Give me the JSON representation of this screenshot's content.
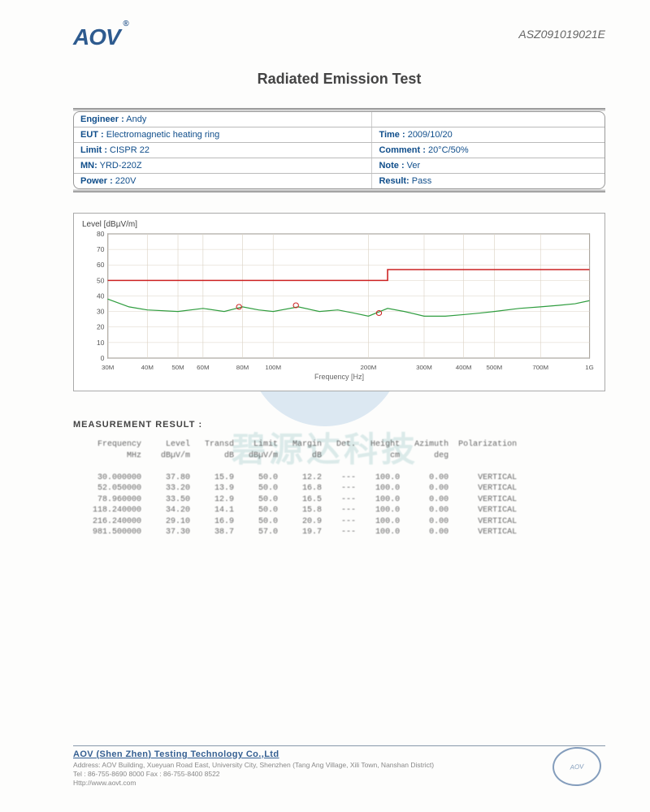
{
  "header": {
    "logo_text": "AOV",
    "doc_number": "ASZ091019021E",
    "title": "Radiated Emission Test"
  },
  "info": {
    "rows": [
      {
        "left_label": "Engineer :",
        "left_value": "Andy",
        "right_label": "",
        "right_value": ""
      },
      {
        "left_label": "EUT :",
        "left_value": "Electromagnetic heating ring",
        "right_label": "Time :",
        "right_value": "2009/10/20"
      },
      {
        "left_label": "Limit :",
        "left_value": "CISPR 22",
        "right_label": "Comment :",
        "right_value": "20°C/50%"
      },
      {
        "left_label": "MN:",
        "left_value": "YRD-220Z",
        "right_label": "Note :",
        "right_value": "Ver"
      },
      {
        "left_label": "Power :",
        "left_value": "220V",
        "right_label": "Result:",
        "right_value": "Pass"
      }
    ]
  },
  "chart": {
    "label": "Level [dBµV/m]",
    "xlabel": "Frequency [Hz]",
    "ylim": [
      0,
      80
    ],
    "ytick_step": 10,
    "xticks": [
      "30M",
      "40M",
      "50M",
      "60M",
      "80M",
      "100M",
      "200M",
      "300M",
      "400M",
      "500M",
      "700M",
      "1G"
    ],
    "grid_color": "#dcd3c5",
    "border_color": "#555555",
    "background_color": "#ffffff",
    "limit_line": {
      "color": "#cc2222",
      "width": 1.5,
      "segments": [
        [
          30,
          50
        ],
        [
          230,
          50
        ],
        [
          230,
          57
        ],
        [
          1000,
          57
        ]
      ]
    },
    "trace": {
      "color": "#2f9d3f",
      "width": 1.2,
      "points": [
        [
          30,
          38
        ],
        [
          35,
          33
        ],
        [
          40,
          31
        ],
        [
          50,
          30
        ],
        [
          60,
          32
        ],
        [
          70,
          30
        ],
        [
          80,
          33
        ],
        [
          90,
          31
        ],
        [
          100,
          30
        ],
        [
          120,
          33
        ],
        [
          140,
          30
        ],
        [
          160,
          31
        ],
        [
          180,
          29
        ],
        [
          200,
          27
        ],
        [
          230,
          32
        ],
        [
          260,
          30
        ],
        [
          300,
          27
        ],
        [
          350,
          27
        ],
        [
          400,
          28
        ],
        [
          450,
          29
        ],
        [
          500,
          30
        ],
        [
          600,
          32
        ],
        [
          700,
          33
        ],
        [
          800,
          34
        ],
        [
          900,
          35
        ],
        [
          1000,
          37
        ]
      ]
    },
    "markers": {
      "color": "#cc2222",
      "size": 3,
      "points": [
        [
          78,
          33
        ],
        [
          118,
          34
        ],
        [
          216,
          29
        ]
      ]
    }
  },
  "results": {
    "heading": "MEASUREMENT  RESULT :",
    "columns": [
      "Frequency",
      "Level",
      "Transd",
      "Limit",
      "Margin",
      "Det.",
      "Height",
      "Azimuth",
      "Polarization"
    ],
    "units": [
      "MHz",
      "dBµV/m",
      "dB",
      "dBµV/m",
      "dB",
      "",
      "cm",
      "deg",
      ""
    ],
    "rows": [
      [
        "30.000000",
        "37.80",
        "15.9",
        "50.0",
        "12.2",
        "---",
        "100.0",
        "0.00",
        "VERTICAL"
      ],
      [
        "52.050000",
        "33.20",
        "13.9",
        "50.0",
        "16.8",
        "---",
        "100.0",
        "0.00",
        "VERTICAL"
      ],
      [
        "78.960000",
        "33.50",
        "12.9",
        "50.0",
        "16.5",
        "---",
        "100.0",
        "0.00",
        "VERTICAL"
      ],
      [
        "118.240000",
        "34.20",
        "14.1",
        "50.0",
        "15.8",
        "---",
        "100.0",
        "0.00",
        "VERTICAL"
      ],
      [
        "216.240000",
        "29.10",
        "16.9",
        "50.0",
        "20.9",
        "---",
        "100.0",
        "0.00",
        "VERTICAL"
      ],
      [
        "981.500000",
        "37.30",
        "38.7",
        "57.0",
        "19.7",
        "---",
        "100.0",
        "0.00",
        "VERTICAL"
      ]
    ]
  },
  "footer": {
    "company": "AOV (Shen Zhen) Testing Technology Co.,Ltd",
    "address": "Address: AOV Building, Xueyuan Road East, University City, Shenzhen (Tang Ang Village, Xili Town, Nanshan District)",
    "phone": "Tel : 86-755-8690 8000     Fax : 86-755-8400 8522",
    "web": "Http://www.aovt.com"
  },
  "watermark_text": "碧源达科技"
}
